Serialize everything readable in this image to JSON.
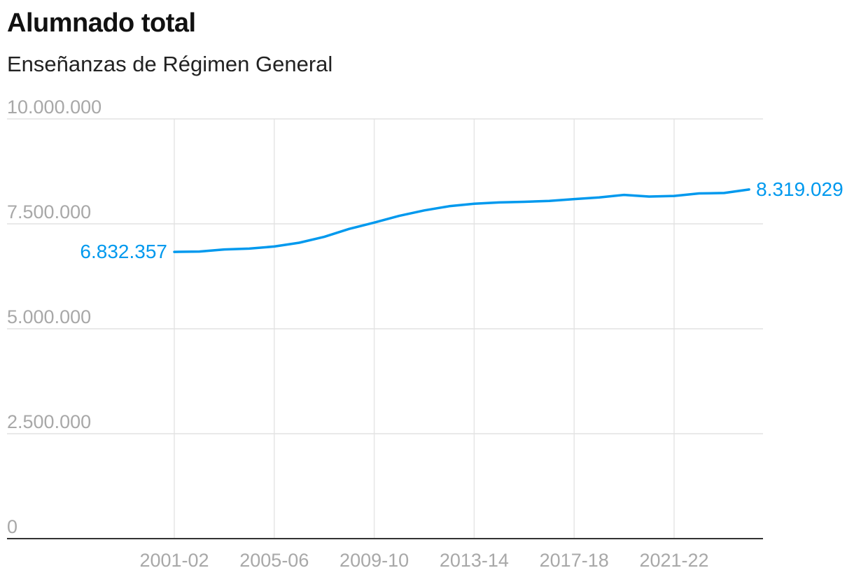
{
  "chart_data": {
    "type": "line",
    "title": "Alumnado total",
    "subtitle": "Enseñanzas de Régimen General",
    "xlabel": "",
    "ylabel": "",
    "ylim": [
      0,
      10000000
    ],
    "y_ticks": [
      0,
      2500000,
      5000000,
      7500000,
      10000000
    ],
    "y_tick_labels": [
      "0",
      "2.500.000",
      "5.000.000",
      "7.500.000",
      "10.000.000"
    ],
    "x_tick_labels": [
      "2001-02",
      "2005-06",
      "2009-10",
      "2013-14",
      "2017-18",
      "2021-22"
    ],
    "grid": true,
    "color": "#0099ee",
    "series": [
      {
        "name": "Alumnado total",
        "x": [
          "2001-02",
          "2002-03",
          "2003-04",
          "2004-05",
          "2005-06",
          "2006-07",
          "2007-08",
          "2008-09",
          "2009-10",
          "2010-11",
          "2011-12",
          "2012-13",
          "2013-14",
          "2014-15",
          "2015-16",
          "2016-17",
          "2017-18",
          "2018-19",
          "2019-20",
          "2020-21",
          "2021-22",
          "2022-23",
          "2023-24",
          "2024-25"
        ],
        "values": [
          6832357,
          6840000,
          6890000,
          6910000,
          6960000,
          7050000,
          7190000,
          7380000,
          7530000,
          7690000,
          7820000,
          7920000,
          7980000,
          8010000,
          8025000,
          8045000,
          8090000,
          8130000,
          8190000,
          8150000,
          8165000,
          8225000,
          8235000,
          8319029
        ]
      }
    ],
    "start_label": "6.832.357",
    "end_label": "8.319.029"
  }
}
